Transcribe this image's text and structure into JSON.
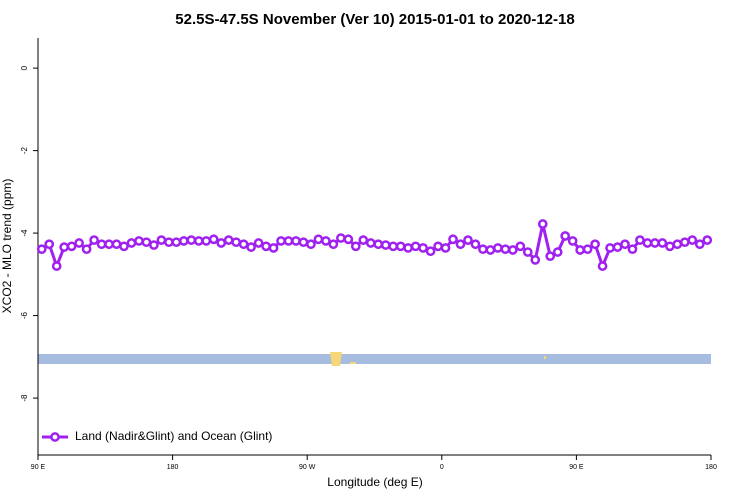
{
  "chart_data": {
    "type": "line",
    "title": "52.5S-47.5S November (Ver 10)   2015-01-01 to 2020-12-18",
    "x_label": "Longitude (deg E)",
    "y_label": "XCO2 - MLO trend (ppm)",
    "xlim": [
      90,
      540
    ],
    "ylim": [
      -9.38,
      0.73
    ],
    "xticks": [
      {
        "value": 90,
        "label": "90 E"
      },
      180,
      {
        "value": 270,
        "label": "90 W"
      },
      {
        "value": 360,
        "label": "0"
      },
      {
        "value": 450,
        "label": "90 E"
      },
      {
        "value": 540,
        "label": "180"
      }
    ],
    "yticks": [
      0,
      -2,
      -4,
      -6,
      -8
    ],
    "legend_position": "bottom-left",
    "x": [
      92.5,
      97.5,
      102.5,
      107.5,
      112.5,
      117.5,
      122.5,
      127.5,
      132.5,
      137.5,
      142.5,
      147.5,
      152.5,
      157.5,
      162.5,
      167.5,
      172.5,
      177.5,
      182.5,
      187.5,
      192.5,
      197.5,
      202.5,
      207.5,
      212.5,
      217.5,
      222.5,
      227.5,
      232.5,
      237.5,
      242.5,
      247.5,
      252.5,
      257.5,
      262.5,
      267.5,
      272.5,
      277.5,
      282.5,
      287.5,
      292.5,
      297.5,
      302.5,
      307.5,
      312.5,
      317.5,
      322.5,
      327.5,
      332.5,
      337.5,
      342.5,
      347.5,
      352.5,
      357.5,
      362.5,
      367.5,
      372.5,
      377.5,
      382.5,
      387.5,
      392.5,
      397.5,
      402.5,
      407.5,
      412.5,
      417.5,
      422.5,
      427.5,
      432.5,
      437.5,
      442.5,
      447.5,
      452.5,
      457.5,
      462.5,
      467.5,
      472.5,
      477.5,
      482.5,
      487.5,
      492.5,
      497.5,
      502.5,
      507.5,
      512.5,
      517.5,
      522.5,
      527.5,
      532.5,
      537.5
    ],
    "series": [
      {
        "name": "Land (Nadir&Glint) and Ocean (Glint)",
        "color": "#a020f0",
        "values": [
          -4.39,
          -4.27,
          -4.8,
          -4.34,
          -4.32,
          -4.24,
          -4.39,
          -4.17,
          -4.27,
          -4.27,
          -4.27,
          -4.32,
          -4.24,
          -4.19,
          -4.22,
          -4.29,
          -4.17,
          -4.22,
          -4.22,
          -4.19,
          -4.17,
          -4.19,
          -4.19,
          -4.15,
          -4.24,
          -4.17,
          -4.22,
          -4.27,
          -4.34,
          -4.24,
          -4.32,
          -4.36,
          -4.19,
          -4.19,
          -4.19,
          -4.22,
          -4.27,
          -4.15,
          -4.19,
          -4.27,
          -4.12,
          -4.15,
          -4.32,
          -4.17,
          -4.24,
          -4.27,
          -4.29,
          -4.32,
          -4.32,
          -4.36,
          -4.32,
          -4.36,
          -4.44,
          -4.32,
          -4.36,
          -4.15,
          -4.27,
          -4.17,
          -4.27,
          -4.39,
          -4.41,
          -4.36,
          -4.39,
          -4.41,
          -4.32,
          -4.46,
          -4.65,
          -3.78,
          -4.56,
          -4.46,
          -4.07,
          -4.19,
          -4.41,
          -4.39,
          -4.27,
          -4.8,
          -4.36,
          -4.34,
          -4.27,
          -4.39,
          -4.17,
          -4.24,
          -4.24,
          -4.24,
          -4.32,
          -4.27,
          -4.22,
          -4.17,
          -4.27,
          -4.17
        ]
      }
    ]
  }
}
